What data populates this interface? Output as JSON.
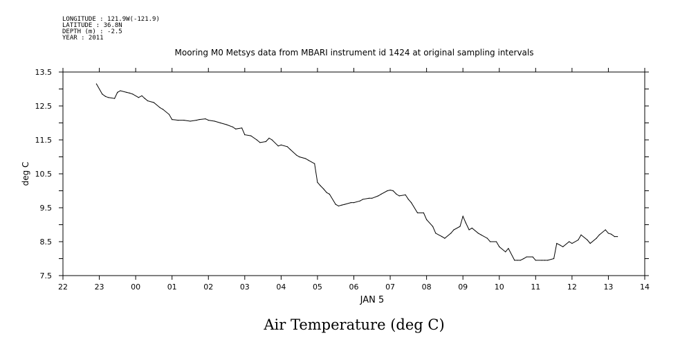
{
  "metadata": {
    "lines": [
      "LONGITUDE : 121.9W(-121.9)",
      "LATITUDE : 36.8N",
      "DEPTH (m) : -2.5",
      "YEAR : 2011"
    ]
  },
  "chart_data": {
    "type": "line",
    "title": "Mooring M0 Metsys data from MBARI instrument id 1424 at original sampling intervals",
    "variable_title": "Air Temperature (deg C)",
    "ylabel": "deg C",
    "xlabel": "JAN  5",
    "xlim": [
      22,
      38
    ],
    "ylim": [
      7.5,
      13.5
    ],
    "x_ticks": [
      22,
      23,
      24,
      25,
      26,
      27,
      28,
      29,
      30,
      31,
      32,
      33,
      34,
      35,
      36,
      37,
      38
    ],
    "x_tick_labels": [
      "22",
      "23",
      "00",
      "01",
      "02",
      "03",
      "04",
      "05",
      "06",
      "07",
      "08",
      "09",
      "10",
      "11",
      "12",
      "13",
      "14"
    ],
    "y_ticks": [
      7.5,
      8.5,
      9.5,
      10.5,
      11.5,
      12.5,
      13.5
    ],
    "y_tick_labels": [
      "7.5",
      "8.5",
      "9.5",
      "10.5",
      "11.5",
      "12.5",
      "13.5"
    ],
    "y_minor_step": 0.5,
    "grid": false,
    "series": [
      {
        "x": [
          22.92,
          23.08,
          23.17,
          23.25,
          23.42,
          23.5,
          23.58,
          23.75,
          23.83,
          23.92,
          24.08,
          24.17,
          24.25,
          24.33,
          24.5,
          24.67,
          24.75,
          24.92,
          25.0,
          25.17,
          25.33,
          25.5,
          25.67,
          25.75,
          25.92,
          26.0,
          26.17,
          26.33,
          26.5,
          26.67,
          26.75,
          26.92,
          27.0,
          27.17,
          27.33,
          27.42,
          27.58,
          27.67,
          27.75,
          27.92,
          28.0,
          28.17,
          28.25,
          28.42,
          28.5,
          28.67,
          28.75,
          28.92,
          29.0,
          29.08,
          29.17,
          29.25,
          29.33,
          29.5,
          29.58,
          29.67,
          29.75,
          29.92,
          30.0,
          30.17,
          30.25,
          30.42,
          30.5,
          30.67,
          30.75,
          30.92,
          31.0,
          31.08,
          31.17,
          31.25,
          31.42,
          31.5,
          31.58,
          31.75,
          31.92,
          32.0,
          32.17,
          32.25,
          32.42,
          32.5,
          32.67,
          32.75,
          32.92,
          33.0,
          33.08,
          33.17,
          33.25,
          33.42,
          33.5,
          33.67,
          33.75,
          33.92,
          34.0,
          34.17,
          34.25,
          34.42,
          34.5,
          34.58,
          34.67,
          34.75,
          34.92,
          35.0,
          35.17,
          35.25,
          35.33,
          35.5,
          35.58,
          35.67,
          35.75,
          35.92,
          36.0,
          36.17,
          36.25,
          36.42,
          36.5,
          36.67,
          36.75,
          36.92,
          37.0,
          37.08,
          37.17,
          37.25
        ],
        "values": [
          13.15,
          12.85,
          12.78,
          12.75,
          12.72,
          12.9,
          12.95,
          12.9,
          12.88,
          12.85,
          12.75,
          12.8,
          12.72,
          12.65,
          12.6,
          12.45,
          12.4,
          12.25,
          12.1,
          12.08,
          12.08,
          12.05,
          12.08,
          12.1,
          12.12,
          12.08,
          12.05,
          12.0,
          11.95,
          11.88,
          11.82,
          11.85,
          11.65,
          11.62,
          11.5,
          11.42,
          11.45,
          11.55,
          11.5,
          11.32,
          11.35,
          11.3,
          11.22,
          11.05,
          11.0,
          10.95,
          10.9,
          10.8,
          10.25,
          10.15,
          10.05,
          9.95,
          9.9,
          9.6,
          9.55,
          9.58,
          9.6,
          9.65,
          9.65,
          9.7,
          9.75,
          9.78,
          9.78,
          9.85,
          9.9,
          10.0,
          10.02,
          10.0,
          9.9,
          9.85,
          9.88,
          9.75,
          9.65,
          9.35,
          9.35,
          9.15,
          8.95,
          8.75,
          8.65,
          8.6,
          8.75,
          8.85,
          8.95,
          9.25,
          9.05,
          8.85,
          8.9,
          8.75,
          8.7,
          8.6,
          8.5,
          8.5,
          8.35,
          8.2,
          8.3,
          7.95,
          7.95,
          7.95,
          8.0,
          8.05,
          8.05,
          7.95,
          7.95,
          7.95,
          7.95,
          8.0,
          8.45,
          8.4,
          8.35,
          8.5,
          8.45,
          8.55,
          8.7,
          8.55,
          8.45,
          8.6,
          8.7,
          8.85,
          8.75,
          8.72,
          8.65,
          8.65
        ]
      }
    ]
  }
}
